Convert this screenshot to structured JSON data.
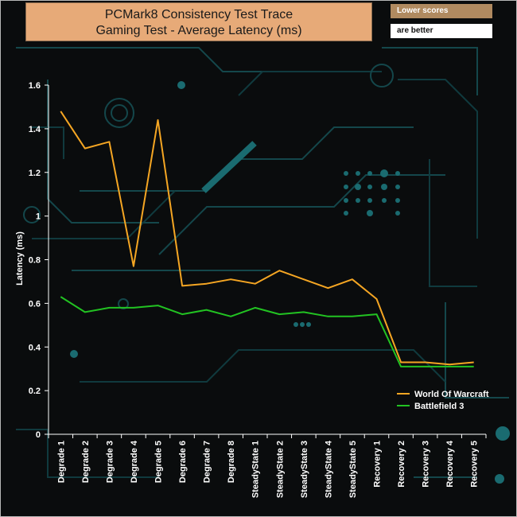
{
  "title_line1": "PCMark8 Consistency Test Trace",
  "title_line2": "Gaming Test -  Average Latency (ms)",
  "note_line1": "Lower scores",
  "note_line2": "are better",
  "colors": {
    "wow": "#f5a623",
    "bf3": "#22c322",
    "circuit": "#14474b",
    "axis": "#ffffff"
  },
  "chart_data": {
    "type": "line",
    "title": "PCMark8 Consistency Test Trace Gaming Test -  Average Latency (ms)",
    "xlabel": "",
    "ylabel": "Latency (ms)",
    "ylim": [
      0,
      1.6
    ],
    "yticks": [
      "0",
      "0.2",
      "0.4",
      "0.6",
      "0.8",
      "1",
      "1.2",
      "1.4",
      "1.6"
    ],
    "categories": [
      "Degrade 1",
      "Degrade 2",
      "Degrade 3",
      "Degrade 4",
      "Degrade 5",
      "Degrade 6",
      "Degrade 7",
      "Degrade 8",
      "SteadyState 1",
      "SteadyState 2",
      "SteadyState 3",
      "SteadyState 4",
      "SteadyState 5",
      "Recovery 1",
      "Recovery 2",
      "Recovery 3",
      "Recovery 4",
      "Recovery 5"
    ],
    "series": [
      {
        "name": "World Of Warcraft",
        "color": "#f5a623",
        "values": [
          1.48,
          1.31,
          1.34,
          0.77,
          1.44,
          0.68,
          0.69,
          0.71,
          0.69,
          0.75,
          0.71,
          0.67,
          0.71,
          0.62,
          0.33,
          0.33,
          0.32,
          0.33
        ]
      },
      {
        "name": "Battlefield 3",
        "color": "#22c322",
        "values": [
          0.63,
          0.56,
          0.58,
          0.58,
          0.59,
          0.55,
          0.57,
          0.54,
          0.58,
          0.55,
          0.56,
          0.54,
          0.54,
          0.55,
          0.31,
          0.31,
          0.31,
          0.31
        ]
      }
    ],
    "grid": false,
    "legend": "bottom-right"
  }
}
